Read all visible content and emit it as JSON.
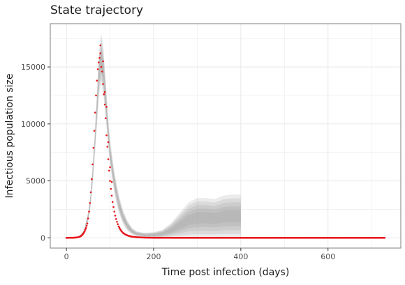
{
  "chart_data": {
    "type": "scatter",
    "title": "State trajectory",
    "xlabel": "Time post infection (days)",
    "ylabel": "Infectious population size",
    "xlim": [
      -37,
      767
    ],
    "ylim": [
      -900,
      18800
    ],
    "x_ticks": [
      0,
      200,
      400,
      600
    ],
    "x_tick_labels": [
      "0",
      "200",
      "400",
      "600"
    ],
    "y_ticks": [
      0,
      5000,
      10000,
      15000
    ],
    "y_tick_labels": [
      "0",
      "5000",
      "10000",
      "15000"
    ],
    "grid": true,
    "legend": "none",
    "colors": {
      "points": "#e8141b",
      "band": "#8f8f8f",
      "grid": "#ebebeb",
      "panel_border": "#7f7f7f"
    },
    "observed_series": {
      "x": [
        0,
        5,
        10,
        15,
        20,
        25,
        30,
        33,
        36,
        39,
        42,
        45,
        48,
        50,
        52,
        54,
        56,
        58,
        60,
        62,
        64,
        66,
        68,
        70,
        72,
        74,
        76,
        78,
        80,
        82,
        84,
        86,
        88,
        90,
        92,
        94,
        96,
        98,
        100,
        102,
        104,
        106,
        108,
        110,
        112,
        114,
        116,
        118,
        120,
        123,
        126,
        130,
        135,
        140,
        145,
        150,
        160,
        170,
        180,
        190,
        200,
        220,
        250,
        300,
        400,
        500,
        600,
        730
      ],
      "y": [
        0,
        2,
        5,
        10,
        20,
        40,
        90,
        150,
        240,
        380,
        580,
        860,
        1250,
        1700,
        2300,
        3050,
        4000,
        5150,
        6450,
        7900,
        9400,
        11000,
        12500,
        13800,
        14800,
        15400,
        15800,
        16200,
        15000,
        14600,
        13500,
        12600,
        11700,
        10500,
        9000,
        8000,
        6900,
        5900,
        5000,
        4300,
        3700,
        3150,
        2700,
        2300,
        1950,
        1650,
        1400,
        1200,
        1000,
        780,
        600,
        430,
        300,
        210,
        150,
        105,
        60,
        35,
        20,
        12,
        7,
        3,
        1,
        0,
        0,
        0,
        0,
        0
      ]
    },
    "outliers": {
      "x": [
        78,
        84,
        88,
        92,
        96,
        100,
        104
      ],
      "y": [
        16900,
        15500,
        12800,
        11500,
        8400,
        6200,
        4900
      ]
    },
    "simulation_band": {
      "x": [
        30,
        40,
        50,
        55,
        60,
        65,
        70,
        75,
        80,
        85,
        90,
        95,
        100,
        110,
        120,
        130,
        140,
        150,
        160,
        170,
        180,
        200,
        220,
        240,
        260,
        280,
        300,
        320,
        340,
        360,
        380,
        400
      ],
      "lower": [
        60,
        300,
        1400,
        2600,
        4500,
        7200,
        9800,
        12600,
        13500,
        12500,
        10500,
        8400,
        6400,
        3900,
        2200,
        1200,
        600,
        300,
        150,
        80,
        40,
        10,
        2,
        0,
        0,
        0,
        0,
        0,
        0,
        0,
        0,
        0
      ],
      "upper": [
        180,
        700,
        2300,
        3800,
        6300,
        9200,
        12800,
        16500,
        18000,
        16600,
        13900,
        11000,
        8600,
        5800,
        3800,
        2400,
        1500,
        900,
        600,
        500,
        450,
        500,
        700,
        1300,
        2200,
        3100,
        3500,
        3500,
        3400,
        3700,
        3800,
        3800
      ]
    }
  }
}
